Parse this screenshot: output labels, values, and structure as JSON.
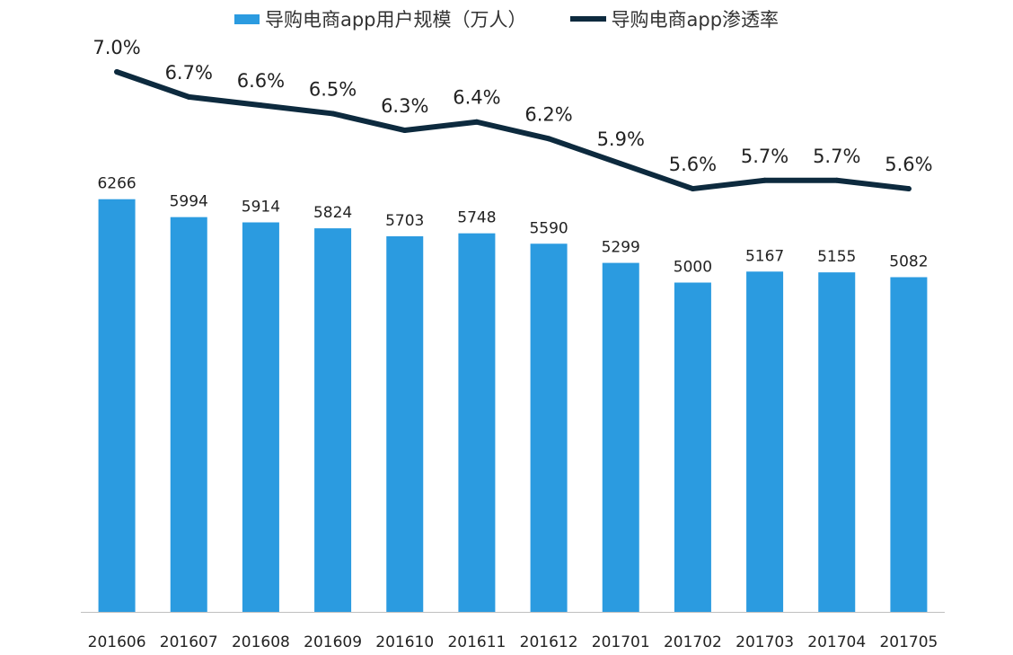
{
  "legend": {
    "bar_label": "导购电商app用户规模（万人）",
    "line_label": "导购电商app渗透率"
  },
  "colors": {
    "bar": "#2b9be0",
    "line": "#0d2a3e",
    "axis": "#bfbfbf"
  },
  "chart_data": {
    "type": "bar",
    "categories": [
      "201606",
      "201607",
      "201608",
      "201609",
      "201610",
      "201611",
      "201612",
      "201701",
      "201702",
      "201703",
      "201704",
      "201705"
    ],
    "series": [
      {
        "name": "导购电商app用户规模（万人）",
        "type": "bar",
        "values": [
          6266,
          5994,
          5914,
          5824,
          5703,
          5748,
          5590,
          5299,
          5000,
          5167,
          5155,
          5082
        ]
      },
      {
        "name": "导购电商app渗透率",
        "type": "line",
        "values": [
          7.0,
          6.7,
          6.6,
          6.5,
          6.3,
          6.4,
          6.2,
          5.9,
          5.6,
          5.7,
          5.7,
          5.6
        ]
      }
    ],
    "bar_data_labels": [
      "6266",
      "5994",
      "5914",
      "5824",
      "5703",
      "5748",
      "5590",
      "5299",
      "5000",
      "5167",
      "5155",
      "5082"
    ],
    "line_data_labels": [
      "7.0%",
      "6.7%",
      "6.6%",
      "6.5%",
      "6.3%",
      "6.4%",
      "6.2%",
      "5.9%",
      "5.6%",
      "5.7%",
      "5.7%",
      "5.6%"
    ],
    "title": "",
    "xlabel": "",
    "ylabel": "",
    "grid": false,
    "legend_position": "top"
  }
}
